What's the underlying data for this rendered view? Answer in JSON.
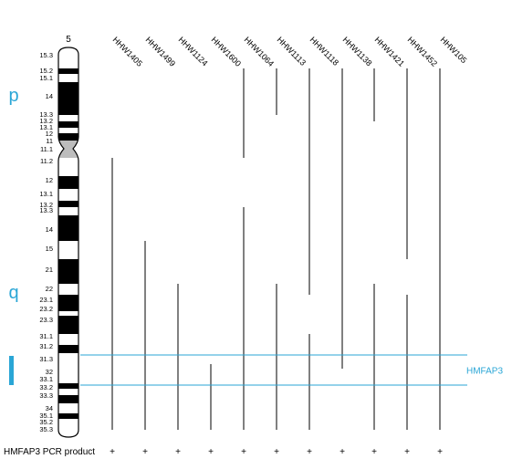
{
  "chromosome": {
    "label": "5",
    "arm_p": "p",
    "arm_q": "q",
    "bands": [
      {
        "label": "15.3",
        "stain": "white"
      },
      {
        "label": "15.2",
        "stain": "black"
      },
      {
        "label": "15.1",
        "stain": "white"
      },
      {
        "label": "14",
        "stain": "black"
      },
      {
        "label": "13.3",
        "stain": "white"
      },
      {
        "label": "13.2",
        "stain": "black"
      },
      {
        "label": "13.1",
        "stain": "white"
      },
      {
        "label": "12",
        "stain": "black"
      },
      {
        "label": "11",
        "stain": "grey"
      },
      {
        "label": "11.1",
        "stain": "grey"
      },
      {
        "label": "11.2",
        "stain": "white"
      },
      {
        "label": "12",
        "stain": "black"
      },
      {
        "label": "13.1",
        "stain": "white"
      },
      {
        "label": "13.2",
        "stain": "black"
      },
      {
        "label": "13.3",
        "stain": "white"
      },
      {
        "label": "14",
        "stain": "black"
      },
      {
        "label": "15",
        "stain": "white"
      },
      {
        "label": "21",
        "stain": "black"
      },
      {
        "label": "22",
        "stain": "white"
      },
      {
        "label": "23.1",
        "stain": "black"
      },
      {
        "label": "23.2",
        "stain": "white"
      },
      {
        "label": "23.3",
        "stain": "black"
      },
      {
        "label": "31.1",
        "stain": "white"
      },
      {
        "label": "31.2",
        "stain": "black"
      },
      {
        "label": "31.3",
        "stain": "white"
      },
      {
        "label": "32",
        "stain": "white"
      },
      {
        "label": "33.1",
        "stain": "white"
      },
      {
        "label": "33.2",
        "stain": "black"
      },
      {
        "label": "33.3",
        "stain": "white"
      },
      {
        "label": "34",
        "stain": "black"
      },
      {
        "label": "35.1",
        "stain": "white"
      },
      {
        "label": "35.2",
        "stain": "black"
      },
      {
        "label": "35.3",
        "stain": "white"
      }
    ]
  },
  "lines": [
    {
      "name": "HHW1405",
      "segments": [
        [
          "11.2",
          "35.3"
        ]
      ]
    },
    {
      "name": "HHW1499",
      "segments": [
        [
          "15",
          "35.3"
        ]
      ]
    },
    {
      "name": "HHW1124",
      "segments": [
        [
          "22",
          "35.3"
        ]
      ]
    },
    {
      "name": "HHW1600",
      "segments": [
        [
          "32",
          "35.3"
        ]
      ]
    },
    {
      "name": "HHW1064",
      "segments": [
        [
          "15.2",
          "11.1"
        ],
        [
          "13.3",
          "35.3"
        ]
      ]
    },
    {
      "name": "HHW1113",
      "segments": [
        [
          "15.2",
          "14"
        ],
        [
          "22",
          "35.3"
        ]
      ]
    },
    {
      "name": "HHW1118",
      "segments": [
        [
          "15.2",
          "22"
        ],
        [
          "31.1",
          "35.3"
        ]
      ]
    },
    {
      "name": "HHW1138",
      "segments": [
        [
          "15.2",
          "32"
        ]
      ]
    },
    {
      "name": "HHW1421",
      "segments": [
        [
          "15.2",
          "13.3"
        ],
        [
          "22",
          "35.3"
        ]
      ]
    },
    {
      "name": "HHW1452",
      "segments": [
        [
          "15.2",
          "15"
        ],
        [
          "23.1",
          "35.3"
        ]
      ]
    },
    {
      "name": "HHW105",
      "segments": [
        [
          "15.2",
          "35.3"
        ]
      ]
    }
  ],
  "region": {
    "label": "HMFAP3",
    "from": "31.3",
    "to": "33.2",
    "color": "#2aa6d6"
  },
  "footer": {
    "label": "HMFAP3 PCR product",
    "marks": [
      "+",
      "+",
      "+",
      "+",
      "+",
      "+",
      "+",
      "+",
      "+",
      "+",
      "+"
    ]
  },
  "colors": {
    "accent": "#2aa6d6",
    "ink": "#000000",
    "centromere": "#bdbdbd"
  }
}
